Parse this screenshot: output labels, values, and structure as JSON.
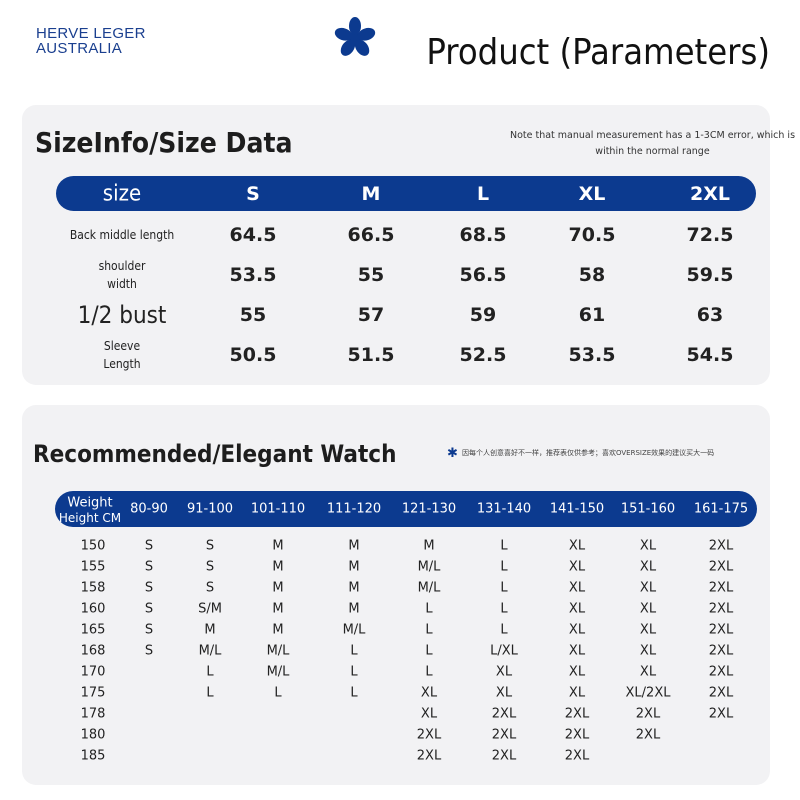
{
  "header": {
    "brand_line1": "HERVE LEGER",
    "brand_line2": "AUSTRALIA",
    "title": "Product (Parameters)"
  },
  "size_section": {
    "title": "SizeInfo/Size Data",
    "note": "Note that manual measurement has a 1-3CM error, which is within the normal range",
    "columns": [
      "size",
      "S",
      "M",
      "L",
      "XL",
      "2XL"
    ],
    "rows": [
      [
        "Back middle length",
        "64.5",
        "66.5",
        "68.5",
        "70.5",
        "72.5"
      ],
      [
        "shoulder width",
        "53.5",
        "55",
        "56.5",
        "58",
        "59.5"
      ],
      [
        "1/2 bust",
        "55",
        "57",
        "59",
        "61",
        "63"
      ],
      [
        "Sleeve Length",
        "50.5",
        "51.5",
        "52.5",
        "53.5",
        "54.5"
      ]
    ]
  },
  "recommend_section": {
    "title": "Recommended/Elegant Watch",
    "note": "因每个人创意喜好不一样，推荐表仅供参考；喜欢OVERSIZE效果的建议买大一码",
    "corner_weight": "Weight",
    "corner_height": "Height CM",
    "columns": [
      "80-90",
      "91-100",
      "101-110",
      "111-120",
      "121-130",
      "131-140",
      "141-150",
      "151-160",
      "161-175"
    ],
    "rows": [
      [
        "150",
        "S",
        "S",
        "M",
        "M",
        "M",
        "L",
        "XL",
        "XL",
        "2XL"
      ],
      [
        "155",
        "S",
        "S",
        "M",
        "M",
        "M/L",
        "L",
        "XL",
        "XL",
        "2XL"
      ],
      [
        "158",
        "S",
        "S",
        "M",
        "M",
        "M/L",
        "L",
        "XL",
        "XL",
        "2XL"
      ],
      [
        "160",
        "S",
        "S/M",
        "M",
        "M",
        "L",
        "L",
        "XL",
        "XL",
        "2XL"
      ],
      [
        "165",
        "S",
        "M",
        "M",
        "M/L",
        "L",
        "L",
        "XL",
        "XL",
        "2XL"
      ],
      [
        "168",
        "S",
        "M/L",
        "M/L",
        "L",
        "L",
        "L/XL",
        "XL",
        "XL",
        "2XL"
      ],
      [
        "170",
        null,
        "L",
        "M/L",
        "L",
        "L",
        "XL",
        "XL",
        "XL",
        "2XL"
      ],
      [
        "175",
        null,
        "L",
        "L",
        "L",
        "XL",
        "XL",
        "XL",
        "XL/2XL",
        "2XL"
      ],
      [
        "178",
        null,
        null,
        null,
        null,
        "XL",
        "2XL",
        "2XL",
        "2XL",
        "2XL"
      ],
      [
        "180",
        null,
        null,
        null,
        null,
        "2XL",
        "2XL",
        "2XL",
        "2XL",
        null
      ],
      [
        "185",
        null,
        null,
        null,
        null,
        "2XL",
        "2XL",
        "2XL",
        null,
        null
      ]
    ]
  }
}
